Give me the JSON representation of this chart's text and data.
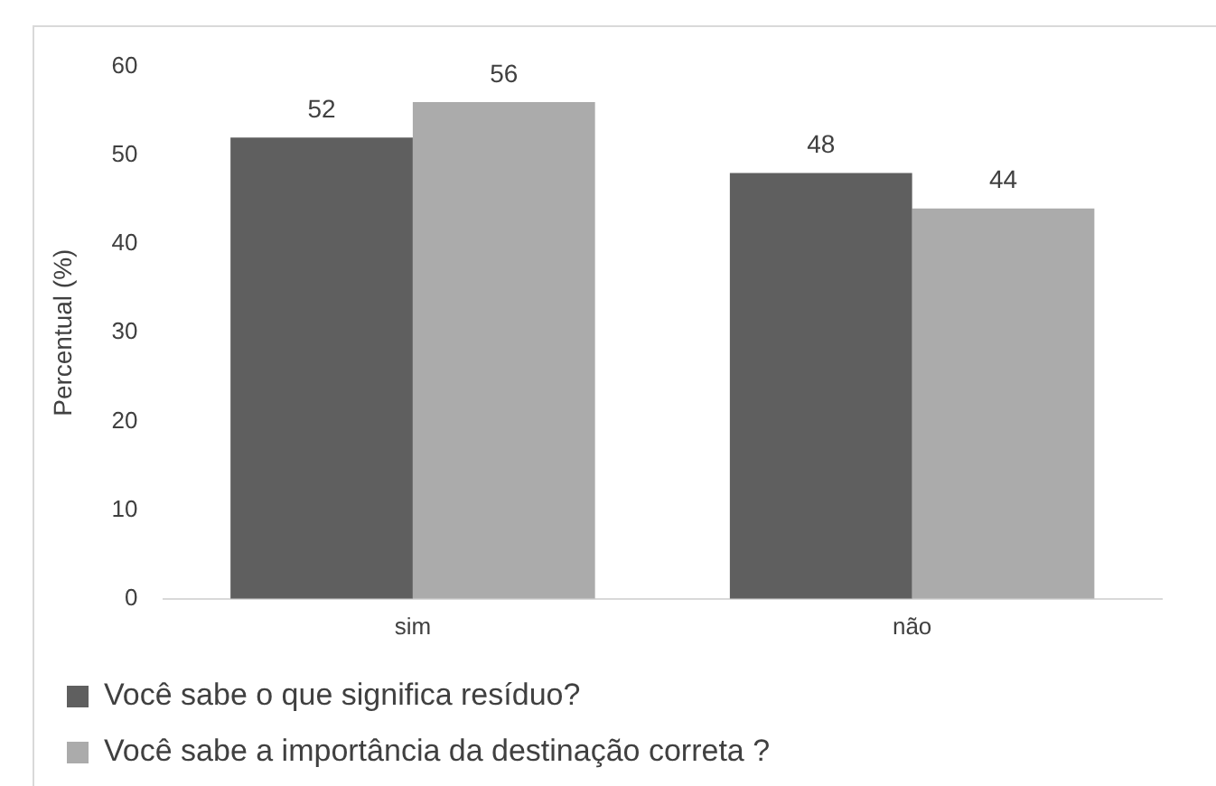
{
  "chart_data": {
    "type": "bar",
    "ylabel": "Percentual (%)",
    "categories": [
      "sim",
      "não"
    ],
    "series": [
      {
        "name": "Você sabe o que significa resíduo?",
        "color": "#5f5f5f",
        "values": [
          52,
          48
        ]
      },
      {
        "name": "Você sabe a importância da destinação correta ?",
        "color": "#ababab",
        "values": [
          56,
          44
        ]
      }
    ],
    "ylim": [
      0,
      60
    ],
    "yticks": [
      0,
      10,
      20,
      30,
      40,
      50,
      60
    ],
    "grid": false,
    "legend": "bottom",
    "data_labels": true
  }
}
